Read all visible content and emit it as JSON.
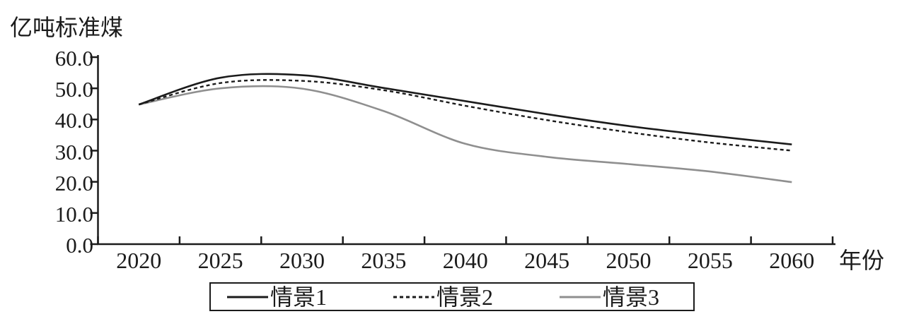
{
  "figure": {
    "background": "#ffffff",
    "axis_color": "#1b1b1b",
    "text_color": "#1b1b1b",
    "gray_series_color": "#8f8f8f"
  },
  "chart_data": {
    "type": "line",
    "title": "",
    "ylabel": "亿吨标准煤",
    "xlabel": "年份",
    "x": [
      2020,
      2025,
      2030,
      2035,
      2040,
      2045,
      2050,
      2055,
      2060
    ],
    "x_tick_labels": [
      "2020",
      "2025",
      "2030",
      "2035",
      "2040",
      "2045",
      "2050",
      "2055",
      "2060"
    ],
    "y_ticks": [
      0,
      10,
      20,
      30,
      40,
      50,
      60
    ],
    "y_tick_labels": [
      "0.0",
      "10.0",
      "20.0",
      "30.0",
      "40.0",
      "50.0",
      "60.0"
    ],
    "ylim": [
      0,
      60
    ],
    "grid": false,
    "legend_position": "bottom",
    "series": [
      {
        "name": "情景1",
        "style": "solid",
        "color": "#1b1b1b",
        "width": 2.6,
        "values": [
          44.8,
          53.4,
          54.2,
          50.1,
          45.9,
          41.7,
          37.9,
          34.8,
          32.0
        ]
      },
      {
        "name": "情景2",
        "style": "dashed",
        "color": "#1b1b1b",
        "width": 2.4,
        "values": [
          44.8,
          51.7,
          52.4,
          49.4,
          44.4,
          39.8,
          35.9,
          32.6,
          30.0
        ]
      },
      {
        "name": "情景3",
        "style": "solid",
        "color": "#8f8f8f",
        "width": 2.6,
        "values": [
          44.8,
          50.0,
          49.9,
          42.7,
          32.2,
          28.0,
          25.7,
          23.3,
          19.9
        ]
      }
    ]
  }
}
